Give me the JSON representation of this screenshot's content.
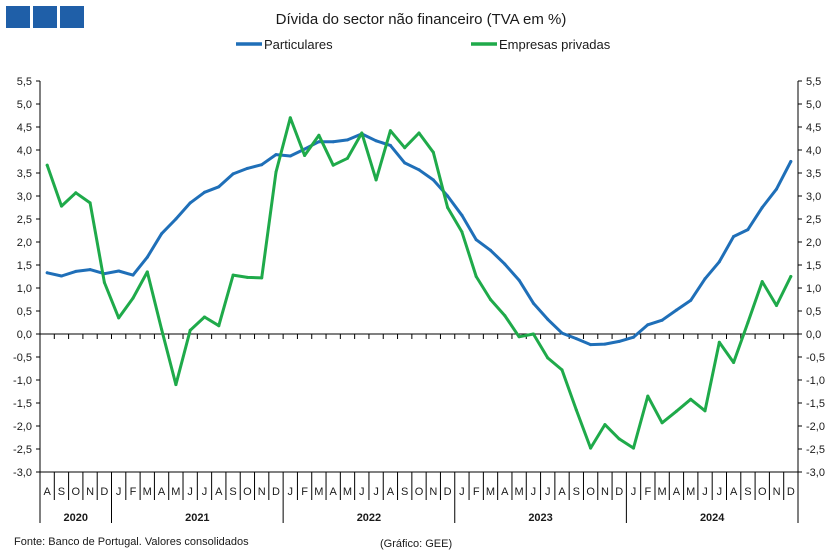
{
  "chart_data": {
    "type": "line",
    "title": "Dívida do sector não financeiro (TVA em %)",
    "x": [
      "2020-08",
      "2020-09",
      "2020-10",
      "2020-11",
      "2020-12",
      "2021-01",
      "2021-02",
      "2021-03",
      "2021-04",
      "2021-05",
      "2021-06",
      "2021-07",
      "2021-08",
      "2021-09",
      "2021-10",
      "2021-11",
      "2021-12",
      "2022-01",
      "2022-02",
      "2022-03",
      "2022-04",
      "2022-05",
      "2022-06",
      "2022-07",
      "2022-08",
      "2022-09",
      "2022-10",
      "2022-11",
      "2022-12",
      "2023-01",
      "2023-02",
      "2023-03",
      "2023-04",
      "2023-05",
      "2023-06",
      "2023-07",
      "2023-08",
      "2023-09",
      "2023-10",
      "2023-11",
      "2023-12",
      "2024-01",
      "2024-02",
      "2024-03",
      "2024-04",
      "2024-05",
      "2024-06",
      "2024-07",
      "2024-08",
      "2024-09",
      "2024-10",
      "2024-11",
      "2024-12"
    ],
    "month_labels": [
      "A",
      "S",
      "O",
      "N",
      "D",
      "J",
      "F",
      "M",
      "A",
      "M",
      "J",
      "J",
      "A",
      "S",
      "O",
      "N",
      "D",
      "J",
      "F",
      "M",
      "A",
      "M",
      "J",
      "J",
      "A",
      "S",
      "O",
      "N",
      "D",
      "J",
      "F",
      "M",
      "A",
      "M",
      "J",
      "J",
      "A",
      "S",
      "O",
      "N",
      "D",
      "J",
      "F",
      "M",
      "A",
      "M",
      "J",
      "J",
      "A",
      "S",
      "O",
      "N",
      "D"
    ],
    "years": [
      {
        "label": "2020",
        "start": 0,
        "end": 5
      },
      {
        "label": "2021",
        "start": 5,
        "end": 17
      },
      {
        "label": "2022",
        "start": 17,
        "end": 29
      },
      {
        "label": "2023",
        "start": 29,
        "end": 41
      },
      {
        "label": "2024",
        "start": 41,
        "end": 53
      }
    ],
    "series": [
      {
        "name": "Particulares",
        "color": "#1f6fb8",
        "values": [
          1.33,
          1.26,
          1.36,
          1.4,
          1.31,
          1.37,
          1.28,
          1.67,
          2.18,
          2.5,
          2.85,
          3.08,
          3.2,
          3.48,
          3.6,
          3.68,
          3.9,
          3.87,
          4.02,
          4.18,
          4.18,
          4.22,
          4.35,
          4.2,
          4.1,
          3.72,
          3.57,
          3.35,
          3.0,
          2.58,
          2.05,
          1.82,
          1.52,
          1.17,
          0.67,
          0.32,
          0.02,
          -0.1,
          -0.23,
          -0.22,
          -0.16,
          -0.07,
          0.2,
          0.3,
          0.52,
          0.73,
          1.2,
          1.57,
          2.12,
          2.27,
          2.75,
          3.15,
          3.75
        ]
      },
      {
        "name": "Empresas privadas",
        "color": "#1faa4a",
        "values": [
          3.67,
          2.78,
          3.07,
          2.85,
          1.12,
          0.35,
          0.78,
          1.35,
          0.1,
          -1.1,
          0.08,
          0.37,
          0.18,
          1.28,
          1.23,
          1.22,
          3.52,
          4.7,
          3.88,
          4.32,
          3.67,
          3.82,
          4.37,
          3.35,
          4.42,
          4.05,
          4.37,
          3.95,
          2.75,
          2.22,
          1.25,
          0.75,
          0.4,
          -0.06,
          0.0,
          -0.52,
          -0.78,
          -1.65,
          -2.48,
          -1.97,
          -2.28,
          -2.48,
          -1.35,
          -1.93,
          -1.68,
          -1.42,
          -1.67,
          -0.18,
          -0.62,
          0.25,
          1.14,
          0.62,
          1.25
        ]
      }
    ],
    "ylim": [
      -3.0,
      5.5
    ],
    "yticks": [
      "-3,0",
      "-2,5",
      "-2,0",
      "-1,5",
      "-1,0",
      "-0,5",
      "0,0",
      "0,5",
      "1,0",
      "1,5",
      "2,0",
      "2,5",
      "3,0",
      "3,5",
      "4,0",
      "4,5",
      "5,0",
      "5,5"
    ],
    "legend_position": "top",
    "grid": false
  },
  "footer": {
    "source": "Fonte: Banco de Portugal. Valores consolidados",
    "credit": "(Gráfico: GEE)"
  }
}
